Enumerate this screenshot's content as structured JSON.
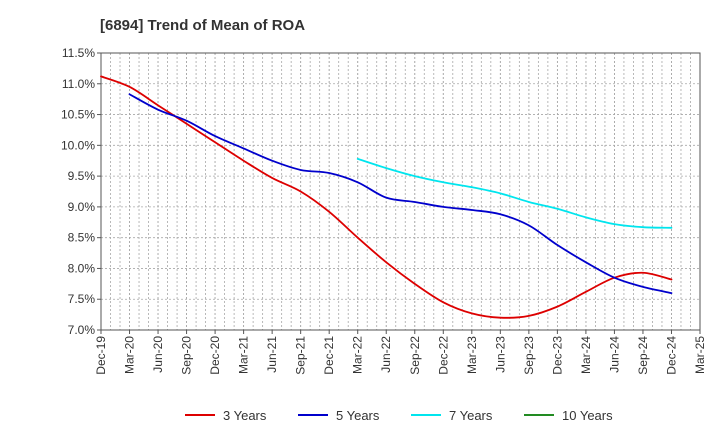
{
  "chart_data": {
    "type": "line",
    "title": "[6894]  Trend of Mean of ROA",
    "xlabel": "",
    "ylabel": "",
    "ylim": [
      7.0,
      11.5
    ],
    "y_ticks": [
      "7.0%",
      "7.5%",
      "8.0%",
      "8.5%",
      "9.0%",
      "9.5%",
      "10.0%",
      "10.5%",
      "11.0%",
      "11.5%"
    ],
    "y_tick_values": [
      7.0,
      7.5,
      8.0,
      8.5,
      9.0,
      9.5,
      10.0,
      10.5,
      11.0,
      11.5
    ],
    "categories": [
      "Dec-19",
      "Mar-20",
      "Jun-20",
      "Sep-20",
      "Dec-20",
      "Mar-21",
      "Jun-21",
      "Sep-21",
      "Dec-21",
      "Mar-22",
      "Jun-22",
      "Sep-22",
      "Dec-22",
      "Mar-23",
      "Jun-23",
      "Sep-23",
      "Dec-23",
      "Mar-24",
      "Jun-24",
      "Sep-24",
      "Dec-24",
      "Mar-25"
    ],
    "grid": true,
    "legend_position": "bottom",
    "series": [
      {
        "name": "3 Years",
        "color": "#dd0000",
        "values": [
          11.12,
          10.95,
          10.65,
          10.35,
          10.05,
          9.75,
          9.47,
          9.25,
          8.92,
          8.5,
          8.1,
          7.75,
          7.45,
          7.27,
          7.2,
          7.23,
          7.38,
          7.62,
          7.85,
          7.93,
          7.82,
          null
        ]
      },
      {
        "name": "5 Years",
        "color": "#0000cc",
        "values": [
          null,
          10.83,
          10.58,
          10.4,
          10.15,
          9.95,
          9.75,
          9.6,
          9.55,
          9.4,
          9.15,
          9.08,
          9.0,
          8.95,
          8.88,
          8.7,
          8.38,
          8.1,
          7.85,
          7.7,
          7.6,
          null
        ]
      },
      {
        "name": "7 Years",
        "color": "#00e5ee",
        "values": [
          null,
          null,
          null,
          null,
          null,
          null,
          null,
          null,
          null,
          9.78,
          9.63,
          9.5,
          9.4,
          9.32,
          9.22,
          9.08,
          8.97,
          8.83,
          8.72,
          8.67,
          8.66,
          null
        ]
      },
      {
        "name": "10 Years",
        "color": "#228b22",
        "values": [
          null,
          null,
          null,
          null,
          null,
          null,
          null,
          null,
          null,
          null,
          null,
          null,
          null,
          null,
          null,
          null,
          null,
          null,
          null,
          null,
          null,
          null
        ]
      }
    ]
  }
}
